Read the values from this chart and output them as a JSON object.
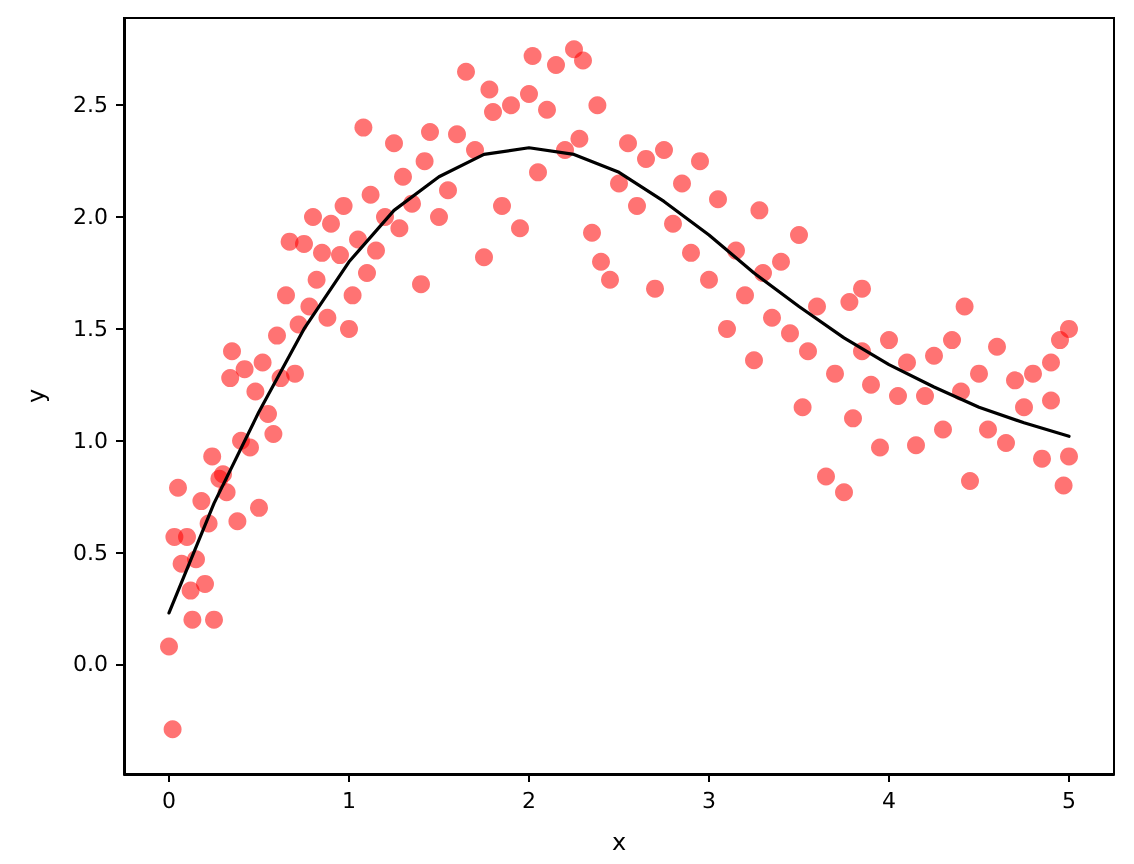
{
  "chart_data": {
    "type": "scatter",
    "xlabel": "x",
    "ylabel": "y",
    "xlim": [
      -0.25,
      5.25
    ],
    "ylim": [
      -0.49,
      2.89
    ],
    "xticks": [
      0,
      1,
      2,
      3,
      4,
      5
    ],
    "yticks": [
      {
        "value": 0,
        "label": "0.0"
      },
      0.5,
      {
        "value": 1,
        "label": "1.0"
      },
      1.5,
      {
        "value": 2,
        "label": "2.0"
      },
      2.5
    ],
    "grid": false,
    "marker": "circle",
    "series": [
      {
        "color": "#ff0000",
        "x": [
          0.0,
          0.02,
          0.03,
          0.05,
          0.07,
          0.1,
          0.12,
          0.13,
          0.15,
          0.18,
          0.2,
          0.22,
          0.24,
          0.25,
          0.28,
          0.3,
          0.32,
          0.34,
          0.35,
          0.38,
          0.4,
          0.42,
          0.45,
          0.48,
          0.5,
          0.52,
          0.55,
          0.58,
          0.6,
          0.62,
          0.65,
          0.67,
          0.7,
          0.72,
          0.75,
          0.78,
          0.8,
          0.82,
          0.85,
          0.88,
          0.9,
          0.95,
          0.97,
          1.0,
          1.02,
          1.05,
          1.08,
          1.1,
          1.12,
          1.15,
          1.2,
          1.25,
          1.28,
          1.3,
          1.35,
          1.4,
          1.42,
          1.45,
          1.5,
          1.55,
          1.6,
          1.65,
          1.7,
          1.75,
          1.78,
          1.8,
          1.85,
          1.9,
          1.95,
          2.0,
          2.02,
          2.05,
          2.1,
          2.15,
          2.2,
          2.25,
          2.28,
          2.3,
          2.35,
          2.38,
          2.4,
          2.45,
          2.5,
          2.55,
          2.6,
          2.65,
          2.7,
          2.75,
          2.8,
          2.85,
          2.9,
          2.95,
          3.0,
          3.05,
          3.1,
          3.15,
          3.2,
          3.25,
          3.28,
          3.3,
          3.35,
          3.4,
          3.45,
          3.5,
          3.52,
          3.55,
          3.6,
          3.65,
          3.7,
          3.75,
          3.78,
          3.8,
          3.85,
          3.85,
          3.9,
          3.95,
          4.0,
          4.05,
          4.1,
          4.15,
          4.2,
          4.25,
          4.3,
          4.35,
          4.4,
          4.42,
          4.45,
          4.5,
          4.55,
          4.6,
          4.65,
          4.7,
          4.75,
          4.8,
          4.85,
          4.9,
          4.9,
          4.95,
          4.97,
          5.0,
          5.0
        ],
        "values": [
          0.08,
          -0.29,
          0.57,
          0.79,
          0.45,
          0.57,
          0.33,
          0.2,
          0.47,
          0.73,
          0.36,
          0.63,
          0.93,
          0.2,
          0.83,
          0.85,
          0.77,
          1.28,
          1.4,
          0.64,
          1.0,
          1.32,
          0.97,
          1.22,
          0.7,
          1.35,
          1.12,
          1.03,
          1.47,
          1.28,
          1.65,
          1.89,
          1.3,
          1.52,
          1.88,
          1.6,
          2.0,
          1.72,
          1.84,
          1.55,
          1.97,
          1.83,
          2.05,
          1.5,
          1.65,
          1.9,
          2.4,
          1.75,
          2.1,
          1.85,
          2.0,
          2.33,
          1.95,
          2.18,
          2.06,
          1.7,
          2.25,
          2.38,
          2.0,
          2.12,
          2.37,
          2.65,
          2.3,
          1.82,
          2.57,
          2.47,
          2.05,
          2.5,
          1.95,
          2.55,
          2.72,
          2.2,
          2.48,
          2.68,
          2.3,
          2.75,
          2.35,
          2.7,
          1.93,
          2.5,
          1.8,
          1.72,
          2.15,
          2.33,
          2.05,
          2.26,
          1.68,
          2.3,
          1.97,
          2.15,
          1.84,
          2.25,
          1.72,
          2.08,
          1.5,
          1.85,
          1.65,
          1.36,
          2.03,
          1.75,
          1.55,
          1.8,
          1.48,
          1.92,
          1.15,
          1.4,
          1.6,
          0.84,
          1.3,
          0.77,
          1.62,
          1.1,
          1.4,
          1.68,
          1.25,
          0.97,
          1.45,
          1.2,
          1.35,
          0.98,
          1.2,
          1.38,
          1.05,
          1.45,
          1.22,
          1.6,
          0.82,
          1.3,
          1.05,
          1.42,
          0.99,
          1.27,
          1.15,
          1.3,
          0.92,
          1.18,
          1.35,
          1.45,
          0.8,
          1.5,
          0.93
        ]
      },
      {
        "type": "line",
        "color": "#000000",
        "marker": "none",
        "x": [
          0,
          0.25,
          0.5,
          0.75,
          1,
          1.25,
          1.5,
          1.75,
          2,
          2.25,
          2.5,
          2.75,
          3,
          3.25,
          3.5,
          3.75,
          4,
          4.25,
          4.5,
          4.75,
          5
        ],
        "values": [
          0.23,
          0.72,
          1.13,
          1.5,
          1.8,
          2.03,
          2.18,
          2.28,
          2.31,
          2.28,
          2.2,
          2.07,
          1.92,
          1.75,
          1.6,
          1.46,
          1.34,
          1.24,
          1.15,
          1.08,
          1.02
        ]
      }
    ]
  }
}
